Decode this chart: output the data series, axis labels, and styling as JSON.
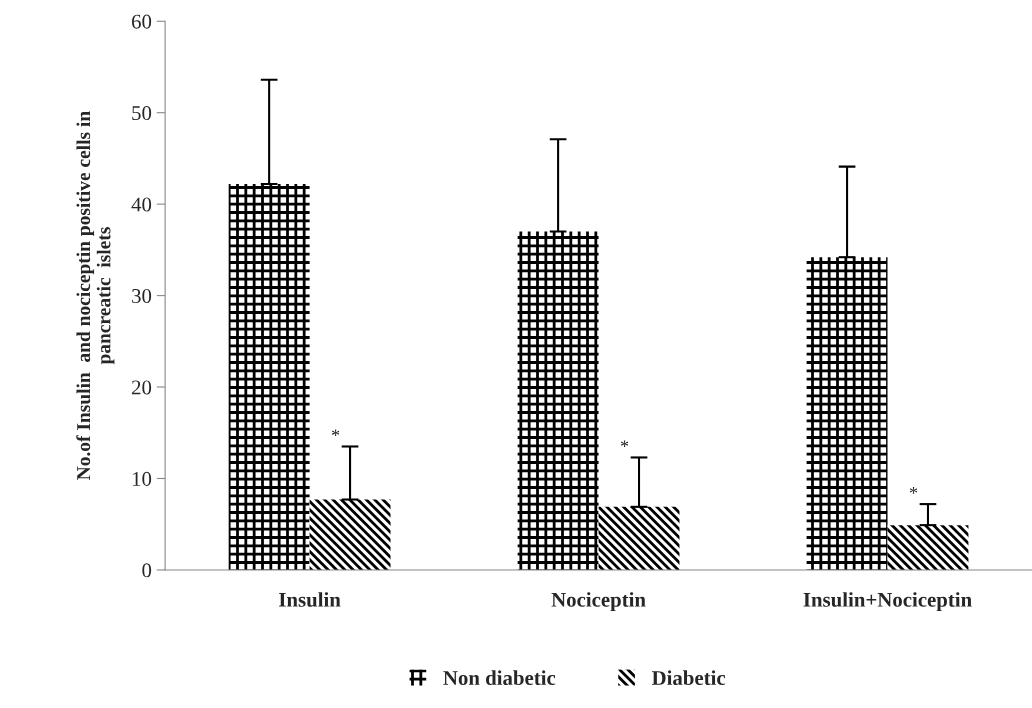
{
  "chart_data": {
    "type": "bar",
    "ylabel": "No.of Insulin  and nociceptin positive cells in\npancreatic  islets",
    "categories": [
      "Insulin",
      "Nociceptin",
      "Insulin+Nociceptin"
    ],
    "series": [
      {
        "name": "Non diabetic",
        "color": "#000000",
        "values": [
          42.2,
          37.0,
          34.2
        ],
        "errors": [
          [
            42.2,
            53.6
          ],
          [
            37.0,
            47.1
          ],
          [
            34.2,
            44.1
          ]
        ]
      },
      {
        "name": "Diabetic",
        "color": "#000000",
        "values": [
          7.7,
          6.9,
          4.9
        ],
        "errors": [
          [
            7.7,
            13.5
          ],
          [
            6.9,
            12.3
          ],
          [
            4.9,
            7.2
          ]
        ]
      }
    ],
    "annotations": [
      {
        "text": "*",
        "x": "Insulin",
        "y": 13.5
      },
      {
        "text": "*",
        "x": "Nociceptin",
        "y": 12.3
      },
      {
        "text": "*",
        "x": "Insulin+Nociceptin",
        "y": 7.2
      }
    ],
    "ylim": [
      0,
      60
    ],
    "yticks": [
      0,
      10,
      20,
      30,
      40,
      50,
      60
    ],
    "grid": false,
    "legend": "bottom"
  }
}
